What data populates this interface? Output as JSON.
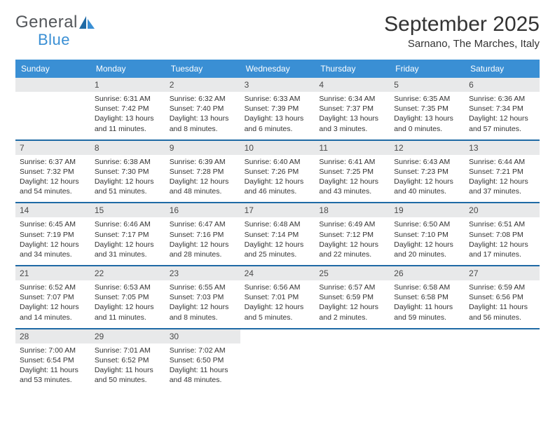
{
  "brand": {
    "word1": "General",
    "word2": "Blue"
  },
  "title": "September 2025",
  "location": "Sarnano, The Marches, Italy",
  "colors": {
    "header_bar": "#3a8fd4",
    "daynum_bg": "#e8e9ea",
    "divider": "#1f6aa5",
    "text": "#333333",
    "logo_grey": "#53565a",
    "logo_blue": "#3a8fd4",
    "background": "#ffffff"
  },
  "weekdays": [
    "Sunday",
    "Monday",
    "Tuesday",
    "Wednesday",
    "Thursday",
    "Friday",
    "Saturday"
  ],
  "weeks": [
    [
      {
        "num": "",
        "sunrise": "",
        "sunset": "",
        "daylight": ""
      },
      {
        "num": "1",
        "sunrise": "Sunrise: 6:31 AM",
        "sunset": "Sunset: 7:42 PM",
        "daylight": "Daylight: 13 hours and 11 minutes."
      },
      {
        "num": "2",
        "sunrise": "Sunrise: 6:32 AM",
        "sunset": "Sunset: 7:40 PM",
        "daylight": "Daylight: 13 hours and 8 minutes."
      },
      {
        "num": "3",
        "sunrise": "Sunrise: 6:33 AM",
        "sunset": "Sunset: 7:39 PM",
        "daylight": "Daylight: 13 hours and 6 minutes."
      },
      {
        "num": "4",
        "sunrise": "Sunrise: 6:34 AM",
        "sunset": "Sunset: 7:37 PM",
        "daylight": "Daylight: 13 hours and 3 minutes."
      },
      {
        "num": "5",
        "sunrise": "Sunrise: 6:35 AM",
        "sunset": "Sunset: 7:35 PM",
        "daylight": "Daylight: 13 hours and 0 minutes."
      },
      {
        "num": "6",
        "sunrise": "Sunrise: 6:36 AM",
        "sunset": "Sunset: 7:34 PM",
        "daylight": "Daylight: 12 hours and 57 minutes."
      }
    ],
    [
      {
        "num": "7",
        "sunrise": "Sunrise: 6:37 AM",
        "sunset": "Sunset: 7:32 PM",
        "daylight": "Daylight: 12 hours and 54 minutes."
      },
      {
        "num": "8",
        "sunrise": "Sunrise: 6:38 AM",
        "sunset": "Sunset: 7:30 PM",
        "daylight": "Daylight: 12 hours and 51 minutes."
      },
      {
        "num": "9",
        "sunrise": "Sunrise: 6:39 AM",
        "sunset": "Sunset: 7:28 PM",
        "daylight": "Daylight: 12 hours and 48 minutes."
      },
      {
        "num": "10",
        "sunrise": "Sunrise: 6:40 AM",
        "sunset": "Sunset: 7:26 PM",
        "daylight": "Daylight: 12 hours and 46 minutes."
      },
      {
        "num": "11",
        "sunrise": "Sunrise: 6:41 AM",
        "sunset": "Sunset: 7:25 PM",
        "daylight": "Daylight: 12 hours and 43 minutes."
      },
      {
        "num": "12",
        "sunrise": "Sunrise: 6:43 AM",
        "sunset": "Sunset: 7:23 PM",
        "daylight": "Daylight: 12 hours and 40 minutes."
      },
      {
        "num": "13",
        "sunrise": "Sunrise: 6:44 AM",
        "sunset": "Sunset: 7:21 PM",
        "daylight": "Daylight: 12 hours and 37 minutes."
      }
    ],
    [
      {
        "num": "14",
        "sunrise": "Sunrise: 6:45 AM",
        "sunset": "Sunset: 7:19 PM",
        "daylight": "Daylight: 12 hours and 34 minutes."
      },
      {
        "num": "15",
        "sunrise": "Sunrise: 6:46 AM",
        "sunset": "Sunset: 7:17 PM",
        "daylight": "Daylight: 12 hours and 31 minutes."
      },
      {
        "num": "16",
        "sunrise": "Sunrise: 6:47 AM",
        "sunset": "Sunset: 7:16 PM",
        "daylight": "Daylight: 12 hours and 28 minutes."
      },
      {
        "num": "17",
        "sunrise": "Sunrise: 6:48 AM",
        "sunset": "Sunset: 7:14 PM",
        "daylight": "Daylight: 12 hours and 25 minutes."
      },
      {
        "num": "18",
        "sunrise": "Sunrise: 6:49 AM",
        "sunset": "Sunset: 7:12 PM",
        "daylight": "Daylight: 12 hours and 22 minutes."
      },
      {
        "num": "19",
        "sunrise": "Sunrise: 6:50 AM",
        "sunset": "Sunset: 7:10 PM",
        "daylight": "Daylight: 12 hours and 20 minutes."
      },
      {
        "num": "20",
        "sunrise": "Sunrise: 6:51 AM",
        "sunset": "Sunset: 7:08 PM",
        "daylight": "Daylight: 12 hours and 17 minutes."
      }
    ],
    [
      {
        "num": "21",
        "sunrise": "Sunrise: 6:52 AM",
        "sunset": "Sunset: 7:07 PM",
        "daylight": "Daylight: 12 hours and 14 minutes."
      },
      {
        "num": "22",
        "sunrise": "Sunrise: 6:53 AM",
        "sunset": "Sunset: 7:05 PM",
        "daylight": "Daylight: 12 hours and 11 minutes."
      },
      {
        "num": "23",
        "sunrise": "Sunrise: 6:55 AM",
        "sunset": "Sunset: 7:03 PM",
        "daylight": "Daylight: 12 hours and 8 minutes."
      },
      {
        "num": "24",
        "sunrise": "Sunrise: 6:56 AM",
        "sunset": "Sunset: 7:01 PM",
        "daylight": "Daylight: 12 hours and 5 minutes."
      },
      {
        "num": "25",
        "sunrise": "Sunrise: 6:57 AM",
        "sunset": "Sunset: 6:59 PM",
        "daylight": "Daylight: 12 hours and 2 minutes."
      },
      {
        "num": "26",
        "sunrise": "Sunrise: 6:58 AM",
        "sunset": "Sunset: 6:58 PM",
        "daylight": "Daylight: 11 hours and 59 minutes."
      },
      {
        "num": "27",
        "sunrise": "Sunrise: 6:59 AM",
        "sunset": "Sunset: 6:56 PM",
        "daylight": "Daylight: 11 hours and 56 minutes."
      }
    ],
    [
      {
        "num": "28",
        "sunrise": "Sunrise: 7:00 AM",
        "sunset": "Sunset: 6:54 PM",
        "daylight": "Daylight: 11 hours and 53 minutes."
      },
      {
        "num": "29",
        "sunrise": "Sunrise: 7:01 AM",
        "sunset": "Sunset: 6:52 PM",
        "daylight": "Daylight: 11 hours and 50 minutes."
      },
      {
        "num": "30",
        "sunrise": "Sunrise: 7:02 AM",
        "sunset": "Sunset: 6:50 PM",
        "daylight": "Daylight: 11 hours and 48 minutes."
      },
      {
        "num": "",
        "sunrise": "",
        "sunset": "",
        "daylight": ""
      },
      {
        "num": "",
        "sunrise": "",
        "sunset": "",
        "daylight": ""
      },
      {
        "num": "",
        "sunrise": "",
        "sunset": "",
        "daylight": ""
      },
      {
        "num": "",
        "sunrise": "",
        "sunset": "",
        "daylight": ""
      }
    ]
  ]
}
